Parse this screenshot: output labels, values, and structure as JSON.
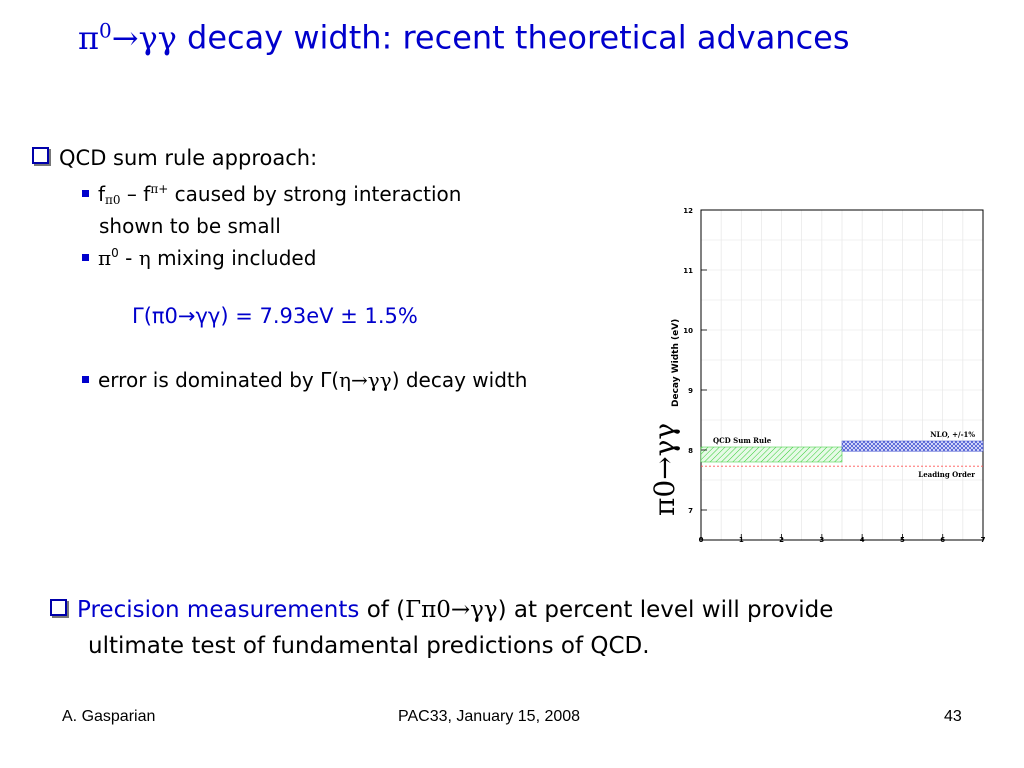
{
  "slide": {
    "title_symbol": "π0→γγ",
    "title_sym_pi": "π",
    "title_sym_zero": "0",
    "title_sym_arrow": "→γγ",
    "title_text": " decay width: recent theoretical advances"
  },
  "bullets": {
    "main": "QCD sum rule approach:",
    "sub1_f": "f",
    "sub1_pi0": "π0",
    "sub1_dash": " – f",
    "sub1_piplus": "π+",
    "sub1_rest": " caused by strong interaction",
    "sub1_cont": "shown to be small",
    "sub2_pi": "π",
    "sub2_zero": "0",
    "sub2_dash": " - ",
    "sub2_eta": "η",
    "sub2_rest": " mixing included",
    "result": "Γ(π0→γγ) = 7.93eV ± 1.5%",
    "sub3_a": "error is dominated by Γ(",
    "sub3_greek": "η→γγ",
    "sub3_b": ") decay width"
  },
  "bottom": {
    "precision": "Precision measurements",
    "of_open": " of (",
    "greek": "Γπ0→γγ",
    "rest_line1": ") at percent level will provide",
    "line2": "ultimate test of fundamental predictions of QCD."
  },
  "footer": {
    "author": "A. Gasparian",
    "event": "PAC33, January 15, 2008",
    "page": "43"
  },
  "colors": {
    "accent": "#0000cc",
    "sum_rule_band": "#33cc33",
    "nlo_band": "#3344cc",
    "leading_order": "#ff5555"
  },
  "chart_data": {
    "type": "band",
    "ylabel_big": "π0→γγ",
    "ylabel": "Decay Width (eV)",
    "xlim": [
      0,
      7
    ],
    "ylim": [
      6.5,
      12
    ],
    "x_ticks": [
      0,
      1,
      2,
      3,
      4,
      5,
      6,
      7
    ],
    "y_ticks": [
      7,
      8,
      9,
      10,
      11,
      12
    ],
    "grid": true,
    "bands": [
      {
        "name": "QCD Sum Rule",
        "x": [
          0,
          3.5
        ],
        "y": [
          7.8,
          8.05
        ],
        "color": "#33cc33"
      },
      {
        "name": "NLO, +/-1%",
        "x": [
          3.5,
          7
        ],
        "y": [
          7.98,
          8.15
        ],
        "color": "#3344cc"
      }
    ],
    "lines": [
      {
        "name": "Leading Order",
        "y": 7.73,
        "color": "#ff5555",
        "style": "dashed"
      }
    ]
  }
}
